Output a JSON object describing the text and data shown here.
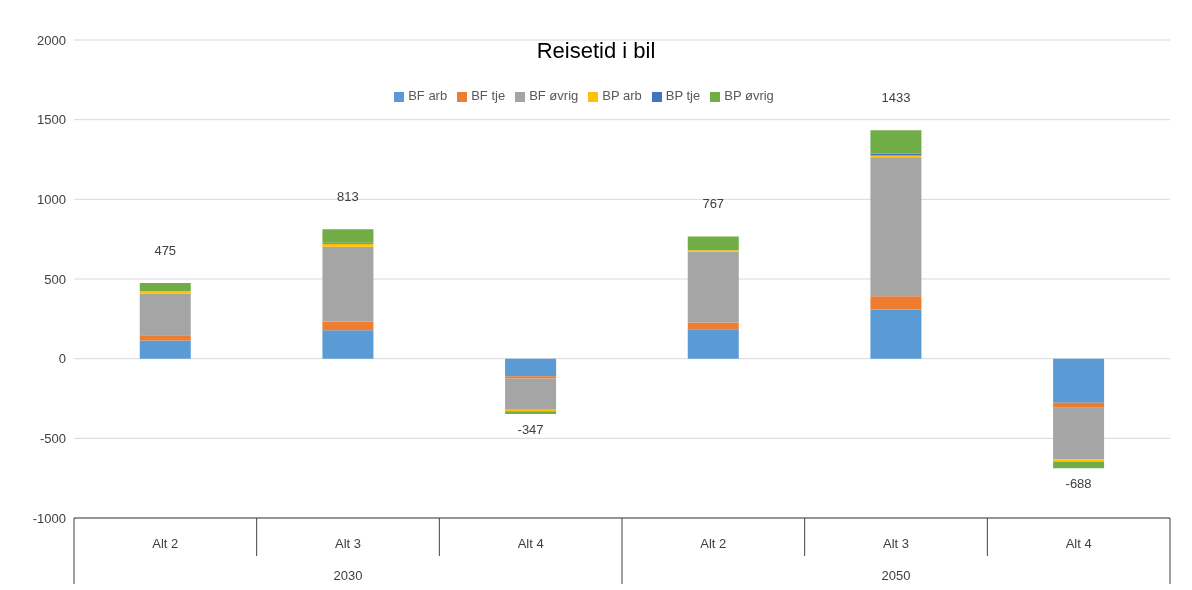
{
  "chart_data": {
    "type": "bar",
    "title": "Reisetid i bil",
    "stacked": true,
    "categories": [
      "Alt 2",
      "Alt 3",
      "Alt 4",
      "Alt 2",
      "Alt 3",
      "Alt 4"
    ],
    "annotations": [
      "2030",
      "2050"
    ],
    "series": [
      {
        "name": "BF arb",
        "color": "#5b9bd5",
        "values": [
          114,
          178,
          -110,
          184,
          308,
          -276
        ]
      },
      {
        "name": "BF tje",
        "color": "#ed7d31",
        "values": [
          33,
          55,
          -15,
          43,
          84,
          -32
        ]
      },
      {
        "name": "BF øvrig",
        "color": "#a5a5a5",
        "values": [
          261,
          469,
          -195,
          444,
          867,
          -323
        ]
      },
      {
        "name": "BP arb",
        "color": "#ffc000",
        "values": [
          15,
          20,
          -10,
          9,
          16,
          -18
        ]
      },
      {
        "name": "BP tje",
        "color": "#4472c4",
        "values": [
          0,
          5,
          0,
          0,
          12,
          0
        ]
      },
      {
        "name": "BP øvrig",
        "color": "#70ad47",
        "values": [
          52,
          86,
          -17,
          87,
          146,
          -39
        ]
      }
    ],
    "totals": [
      "475",
      "813",
      "-347",
      "767",
      "1433",
      "-688"
    ],
    "ylim": [
      -1000,
      2000
    ],
    "yticks": [
      -1000,
      -500,
      0,
      500,
      1000,
      1500,
      2000
    ],
    "grid": "y",
    "legend": "top"
  }
}
